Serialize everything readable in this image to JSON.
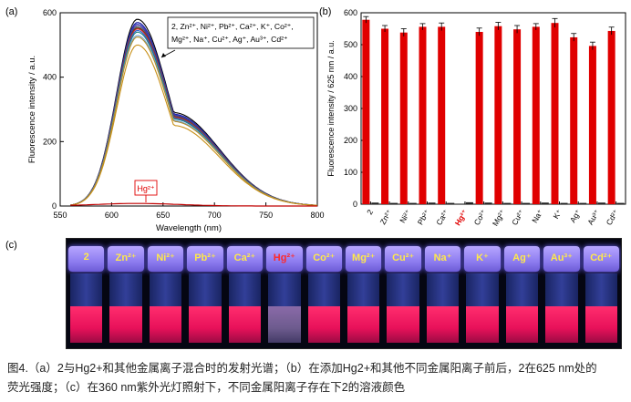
{
  "panel_labels": {
    "a": "(a)",
    "b": "(b)",
    "c": "(c)"
  },
  "colors": {
    "bar": "#e00000",
    "hg_label": "#e00000",
    "photo_text": "#ffe94a"
  },
  "chart_data": [
    {
      "type": "line",
      "xlabel": "Wavelength (nm)",
      "ylabel": "Fluorescence intensity / a.u.",
      "xlim": [
        550,
        800
      ],
      "ylim": [
        0,
        600
      ],
      "xticks": [
        "550",
        "600",
        "650",
        "700",
        "750",
        "800"
      ],
      "yticks": [
        "0",
        "200",
        "400",
        "600"
      ],
      "legend_box_lines": [
        "2, Zn²⁺, Ni²⁺, Pb²⁺, Ca²⁺, K⁺, Co²⁺,",
        "Mg²⁺, Na⁺, Cu²⁺, Ag⁺, Au³⁺, Cd²⁺"
      ],
      "annotation_hg": "Hg²⁺",
      "peak_x": 625,
      "series_peaks": [
        580,
        570,
        565,
        560,
        555,
        553,
        550,
        545,
        540,
        530,
        525,
        500
      ],
      "series_colors": [
        "#000000",
        "#1a1aa0",
        "#3040c0",
        "#5a2f8a",
        "#1f8a3a",
        "#7a2020",
        "#d03030",
        "#2060d0",
        "#208080",
        "#6fa0d8",
        "#b08c2a",
        "#c89018"
      ],
      "hg_level": 8
    },
    {
      "type": "bar",
      "ylabel": "Fluorescence intensity / 625 nm / a.u.",
      "ylim": [
        0,
        600
      ],
      "yticks": [
        "0",
        "100",
        "200",
        "300",
        "400",
        "500",
        "600"
      ],
      "categories": [
        "2",
        "Zn²⁺",
        "Ni²⁺",
        "Pb²⁺",
        "Ca²⁺",
        "Hg²⁺",
        "Co²⁺",
        "Mg²⁺",
        "Cu²⁺",
        "Na⁺",
        "K⁺",
        "Ag⁺",
        "Au³⁺",
        "Cd²⁺"
      ],
      "series": [
        {
          "values": [
            578,
            550,
            538,
            556,
            556,
            0,
            540,
            558,
            548,
            556,
            568,
            523,
            496,
            543
          ],
          "errors": [
            10,
            10,
            12,
            10,
            12,
            0,
            12,
            12,
            12,
            10,
            14,
            12,
            12,
            12
          ]
        },
        {
          "values": [
            5,
            4,
            4,
            5,
            4,
            6,
            5,
            4,
            4,
            5,
            4,
            4,
            5,
            4
          ]
        }
      ],
      "highlight_category": "Hg²⁺"
    }
  ],
  "photo": {
    "vials": [
      "2",
      "Zn²⁺",
      "Ni²⁺",
      "Pb²⁺",
      "Ca²⁺",
      "Hg²⁺",
      "Co²⁺",
      "Mg²⁺",
      "Cu²⁺",
      "Na⁺",
      "K⁺",
      "Ag⁺",
      "Au³⁺",
      "Cd²⁺"
    ],
    "highlight": "Hg²⁺"
  },
  "caption": {
    "line1": "图4.（a）2与Hg2+和其他金属离子混合时的发射光谱；（b）在添加Hg2+和其他不同金属阳离子前后，2在625 nm处的",
    "line2": "荧光强度；（c）在360 nm紫外光灯照射下，不同金属阳离子存在下2的溶液颜色"
  }
}
